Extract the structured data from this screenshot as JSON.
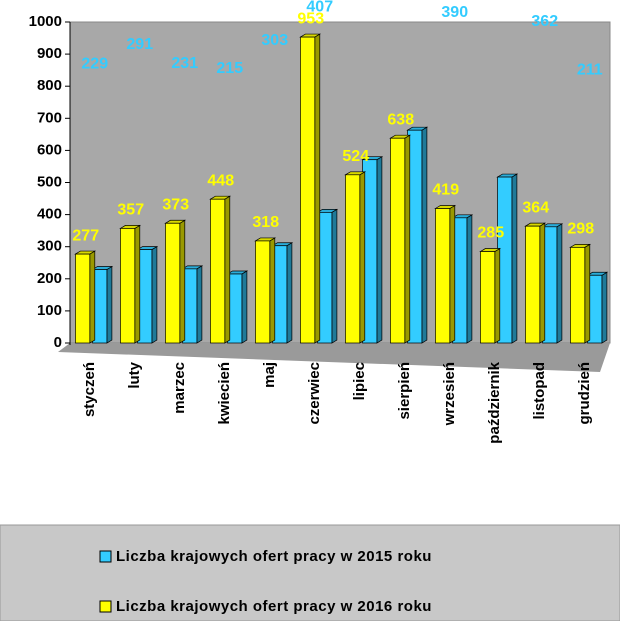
{
  "chart_data": {
    "type": "bar3d",
    "categories": [
      "styczeń",
      "luty",
      "marzec",
      "kwiecień",
      "maj",
      "czerwiec",
      "lipiec",
      "sierpień",
      "wrzesień",
      "październik",
      "listopad",
      "grudzień"
    ],
    "series": [
      {
        "name": "Liczba krajowych ofert pracy w 2015 roku",
        "color": "#33ccff",
        "values": [
          229,
          291,
          231,
          215,
          303,
          407,
          571,
          663,
          390,
          517,
          362,
          211
        ]
      },
      {
        "name": "Liczba krajowych ofert pracy w 2016 roku",
        "color": "#ffff00",
        "values": [
          277,
          357,
          373,
          448,
          318,
          953,
          524,
          638,
          419,
          285,
          364,
          298
        ]
      }
    ],
    "ylim": [
      0,
      1000
    ],
    "yticks": [
      0,
      100,
      200,
      300,
      400,
      500,
      600,
      700,
      800,
      900,
      1000
    ],
    "grid": false
  }
}
